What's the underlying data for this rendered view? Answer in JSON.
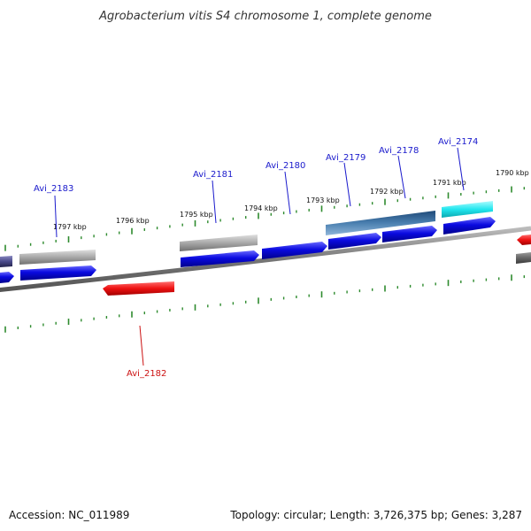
{
  "title": "Agrobacterium vitis S4 chromosome 1, complete genome",
  "footer": {
    "accession": "Accession: NC_011989",
    "summary": "Topology: circular; Length: 3,726,375 bp; Genes: 3,287"
  },
  "colors": {
    "backbone": "#777777",
    "tick": "#2e8b2e",
    "forward_label": "#1a1acc",
    "reverse_label": "#cc1111",
    "blue": "#0a0ae0",
    "gray": "#a8a8a8",
    "steel": "#4a7fb0",
    "cyan": "#22e6ee",
    "red": "#ee1111",
    "darkgray": "#666666",
    "navy": "#4a4a8a"
  },
  "scale_labels": [
    "1797 kbp",
    "1796 kbp",
    "1795 kbp",
    "1794 kbp",
    "1793 kbp",
    "1792 kbp",
    "1791 kbp",
    "1790 kbp"
  ],
  "gene_labels": [
    {
      "name": "Avi_2183",
      "strand": "forward"
    },
    {
      "name": "Avi_2181",
      "strand": "forward"
    },
    {
      "name": "Avi_2180",
      "strand": "forward"
    },
    {
      "name": "Avi_2179",
      "strand": "forward"
    },
    {
      "name": "Avi_2178",
      "strand": "forward"
    },
    {
      "name": "Avi_2174",
      "strand": "forward"
    },
    {
      "name": "Avi_2182",
      "strand": "reverse"
    }
  ]
}
